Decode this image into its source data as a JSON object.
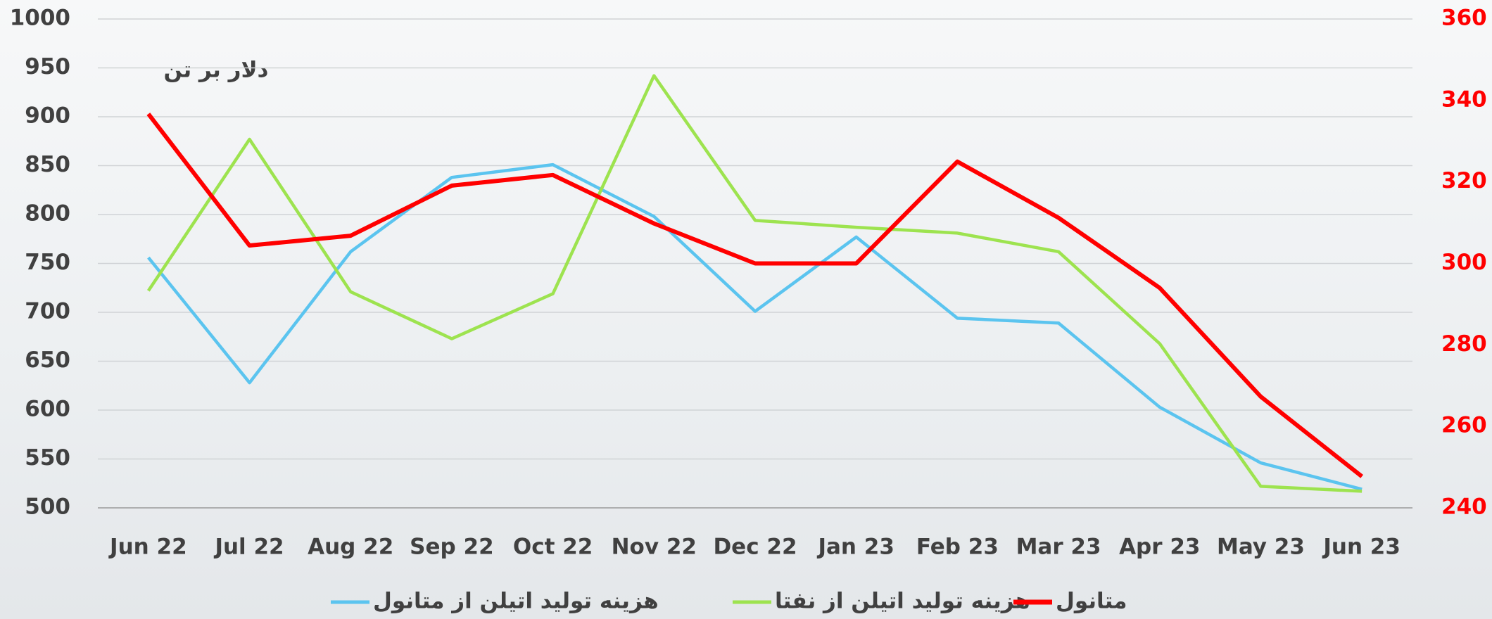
{
  "chart_data": {
    "type": "line",
    "annotation": "دلار بر تن",
    "categories": [
      "Jun 22",
      "Jul 22",
      "Aug 22",
      "Sep 22",
      "Oct 22",
      "Nov 22",
      "Dec 22",
      "Jan 23",
      "Feb 23",
      "Mar 23",
      "Apr 23",
      "May 23",
      "Jun 23"
    ],
    "series": [
      {
        "name": "هزینه تولید اتیلن از متانول",
        "color": "#5bc4ef",
        "axis": "y",
        "values": [
          756,
          628,
          762,
          838,
          851,
          798,
          701,
          777,
          694,
          689,
          603,
          546,
          519
        ]
      },
      {
        "name": "هزینه تولید اتیلن از نفتا",
        "color": "#9de34f",
        "axis": "y",
        "values": [
          722,
          877,
          721,
          673,
          719,
          942,
          794,
          787,
          781,
          762,
          668,
          522,
          517
        ]
      },
      {
        "name": "متانول",
        "color": "#ff0000",
        "axis": "y2",
        "values": [
          336.7,
          304.4,
          306.8,
          319.1,
          321.7,
          309.8,
          300,
          300,
          325,
          311.2,
          294,
          267.3,
          247.7
        ]
      }
    ],
    "ylim": [
      500,
      1000
    ],
    "yticks": [
      500,
      550,
      600,
      650,
      700,
      750,
      800,
      850,
      900,
      950,
      1000
    ],
    "y2lim": [
      240,
      360
    ],
    "y2ticks": [
      240,
      260,
      280,
      300,
      320,
      340,
      360
    ],
    "grid": true,
    "legend": "bottom"
  }
}
